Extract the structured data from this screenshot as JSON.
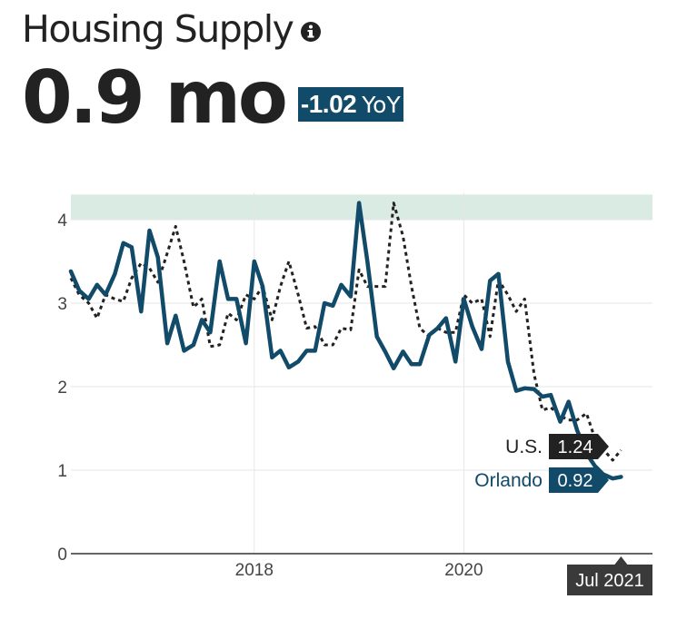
{
  "header": {
    "title": "Housing Supply",
    "info_icon": "info-circle-icon",
    "value": "0.9 mo",
    "yoy_value": "-1.02",
    "yoy_suffix": "YoY"
  },
  "colors": {
    "orlando": "#114b69",
    "us": "#222222",
    "band": "#d9ebe3",
    "grid": "#e6e6e6",
    "date_flag": "#3a3a3a"
  },
  "chart_data": {
    "type": "line",
    "x_ticks": [
      2018,
      2020
    ],
    "ylim": [
      0,
      4.3
    ],
    "y_ticks": [
      0,
      1,
      2,
      3,
      4
    ],
    "band": [
      4.0,
      4.3
    ],
    "date_label": "Jul 2021",
    "series": [
      {
        "name": "U.S.",
        "style": "dotted",
        "end_value": "1.24",
        "points": [
          [
            2016.25,
            3.3
          ],
          [
            2016.33,
            3.1
          ],
          [
            2016.42,
            3.0
          ],
          [
            2016.5,
            2.82
          ],
          [
            2016.58,
            3.1
          ],
          [
            2016.67,
            3.05
          ],
          [
            2016.75,
            3.02
          ],
          [
            2016.83,
            3.3
          ],
          [
            2016.92,
            3.48
          ],
          [
            2017.0,
            3.42
          ],
          [
            2017.08,
            3.25
          ],
          [
            2017.17,
            3.6
          ],
          [
            2017.25,
            3.92
          ],
          [
            2017.33,
            3.5
          ],
          [
            2017.42,
            2.95
          ],
          [
            2017.5,
            3.05
          ],
          [
            2017.58,
            2.48
          ],
          [
            2017.67,
            2.5
          ],
          [
            2017.75,
            2.88
          ],
          [
            2017.83,
            2.8
          ],
          [
            2017.92,
            3.1
          ],
          [
            2018.0,
            3.05
          ],
          [
            2018.08,
            3.2
          ],
          [
            2018.17,
            2.8
          ],
          [
            2018.25,
            3.2
          ],
          [
            2018.33,
            3.5
          ],
          [
            2018.42,
            3.1
          ],
          [
            2018.5,
            2.7
          ],
          [
            2018.58,
            2.72
          ],
          [
            2018.67,
            2.5
          ],
          [
            2018.75,
            2.5
          ],
          [
            2018.83,
            2.7
          ],
          [
            2018.92,
            2.68
          ],
          [
            2019.0,
            3.4
          ],
          [
            2019.08,
            3.2
          ],
          [
            2019.17,
            3.2
          ],
          [
            2019.25,
            3.2
          ],
          [
            2019.33,
            4.2
          ],
          [
            2019.42,
            3.8
          ],
          [
            2019.5,
            3.2
          ],
          [
            2019.58,
            2.7
          ],
          [
            2019.67,
            2.6
          ],
          [
            2019.75,
            2.7
          ],
          [
            2019.83,
            2.65
          ],
          [
            2019.92,
            2.65
          ],
          [
            2020.0,
            3.1
          ],
          [
            2020.08,
            3.0
          ],
          [
            2020.17,
            3.05
          ],
          [
            2020.25,
            2.6
          ],
          [
            2020.33,
            3.28
          ],
          [
            2020.42,
            3.1
          ],
          [
            2020.5,
            2.9
          ],
          [
            2020.58,
            3.05
          ],
          [
            2020.67,
            2.15
          ],
          [
            2020.75,
            1.72
          ],
          [
            2020.83,
            1.75
          ],
          [
            2020.92,
            1.65
          ],
          [
            2021.0,
            1.6
          ],
          [
            2021.08,
            1.6
          ],
          [
            2021.17,
            1.68
          ],
          [
            2021.25,
            1.38
          ],
          [
            2021.33,
            1.25
          ],
          [
            2021.42,
            1.12
          ],
          [
            2021.5,
            1.24
          ]
        ]
      },
      {
        "name": "Orlando",
        "style": "solid",
        "end_value": "0.92",
        "points": [
          [
            2016.25,
            3.38
          ],
          [
            2016.33,
            3.15
          ],
          [
            2016.42,
            3.05
          ],
          [
            2016.5,
            3.22
          ],
          [
            2016.58,
            3.1
          ],
          [
            2016.67,
            3.35
          ],
          [
            2016.75,
            3.72
          ],
          [
            2016.83,
            3.67
          ],
          [
            2016.92,
            2.9
          ],
          [
            2017.0,
            3.87
          ],
          [
            2017.08,
            3.55
          ],
          [
            2017.17,
            2.52
          ],
          [
            2017.25,
            2.85
          ],
          [
            2017.33,
            2.43
          ],
          [
            2017.42,
            2.5
          ],
          [
            2017.5,
            2.8
          ],
          [
            2017.58,
            2.65
          ],
          [
            2017.67,
            3.5
          ],
          [
            2017.75,
            3.05
          ],
          [
            2017.83,
            3.05
          ],
          [
            2017.92,
            2.52
          ],
          [
            2018.0,
            3.5
          ],
          [
            2018.08,
            3.2
          ],
          [
            2018.17,
            2.35
          ],
          [
            2018.25,
            2.43
          ],
          [
            2018.33,
            2.23
          ],
          [
            2018.42,
            2.3
          ],
          [
            2018.5,
            2.43
          ],
          [
            2018.58,
            2.43
          ],
          [
            2018.67,
            3.0
          ],
          [
            2018.75,
            2.97
          ],
          [
            2018.83,
            3.22
          ],
          [
            2018.92,
            3.08
          ],
          [
            2019.0,
            4.2
          ],
          [
            2019.08,
            3.5
          ],
          [
            2019.17,
            2.6
          ],
          [
            2019.25,
            2.42
          ],
          [
            2019.33,
            2.22
          ],
          [
            2019.42,
            2.42
          ],
          [
            2019.5,
            2.27
          ],
          [
            2019.58,
            2.27
          ],
          [
            2019.67,
            2.62
          ],
          [
            2019.75,
            2.7
          ],
          [
            2019.83,
            2.82
          ],
          [
            2019.92,
            2.3
          ],
          [
            2020.0,
            3.05
          ],
          [
            2020.08,
            2.72
          ],
          [
            2020.17,
            2.45
          ],
          [
            2020.25,
            3.27
          ],
          [
            2020.33,
            3.35
          ],
          [
            2020.42,
            2.3
          ],
          [
            2020.5,
            1.95
          ],
          [
            2020.58,
            1.98
          ],
          [
            2020.67,
            1.97
          ],
          [
            2020.75,
            1.88
          ],
          [
            2020.83,
            1.9
          ],
          [
            2020.92,
            1.58
          ],
          [
            2021.0,
            1.82
          ],
          [
            2021.08,
            1.48
          ],
          [
            2021.17,
            1.2
          ],
          [
            2021.25,
            1.05
          ],
          [
            2021.33,
            0.95
          ],
          [
            2021.42,
            0.9
          ],
          [
            2021.5,
            0.92
          ]
        ]
      }
    ]
  }
}
